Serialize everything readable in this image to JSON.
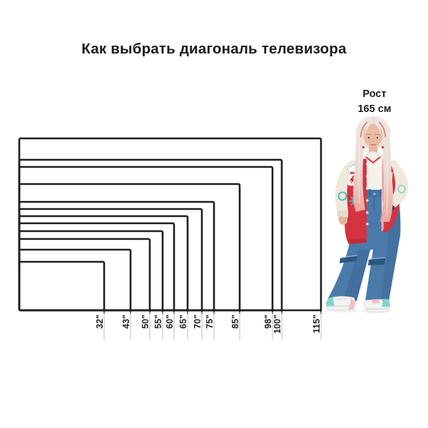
{
  "title": "Как выбрать диагональ телевизора",
  "person": {
    "caption_line1": "Рост",
    "caption_line2": "165 см",
    "height_cm": 165
  },
  "diagram": {
    "sizes": [
      {
        "label": "32\"",
        "inches": 32
      },
      {
        "label": "43\"",
        "inches": 43
      },
      {
        "label": "50\"",
        "inches": 50
      },
      {
        "label": "55\"",
        "inches": 55
      },
      {
        "label": "60\"",
        "inches": 60
      },
      {
        "label": "65\"",
        "inches": 65
      },
      {
        "label": "70\"",
        "inches": 70
      },
      {
        "label": "75\"",
        "inches": 75
      },
      {
        "label": "85\"",
        "inches": 85
      },
      {
        "label": "98\"",
        "inches": 98
      },
      {
        "label": "100\"",
        "inches": 100
      },
      {
        "label": "115\"",
        "inches": 115
      }
    ]
  },
  "chart_data": {
    "type": "size-comparison",
    "title": "Как выбрать диагональ телевизора",
    "categories": [
      "32\"",
      "43\"",
      "50\"",
      "55\"",
      "60\"",
      "65\"",
      "70\"",
      "75\"",
      "85\"",
      "98\"",
      "100\"",
      "115\""
    ],
    "diagonals_inches": [
      32,
      43,
      50,
      55,
      60,
      65,
      70,
      75,
      85,
      98,
      100,
      115
    ],
    "reference_person": {
      "label": "Рост 165 см",
      "height_cm": 165
    },
    "aspect_ratio": "16:9"
  },
  "colors": {
    "line": "#1f1f1f",
    "guide": "#c9c9c9",
    "jacket_red": "#d63340",
    "sleeve_cream": "#efe9dc",
    "teal_accent": "#4ec3bd",
    "denim_blue": "#4a7aa9",
    "hair_pink": "#eba49b",
    "sneaker_teal": "#7fd4cf",
    "sneaker_pink": "#f3bdc8"
  }
}
